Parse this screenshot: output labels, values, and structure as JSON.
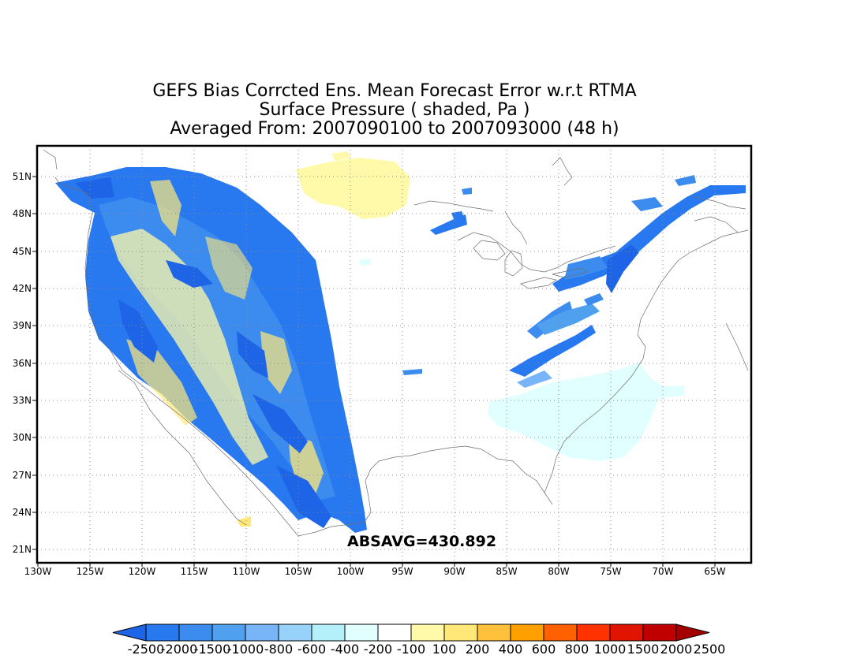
{
  "title": {
    "line1": "GEFS Bias Corrcted Ens. Mean Forecast Error w.r.t RTMA",
    "line2": "Surface Pressure ( shaded, Pa )",
    "line3": "Averaged From: 2007090100 to 2007093000 (48 h)"
  },
  "annotation": "ABSAVG=430.892",
  "lat_labels": [
    "51N",
    "48N",
    "45N",
    "42N",
    "39N",
    "36N",
    "33N",
    "30N",
    "27N",
    "24N",
    "21N"
  ],
  "lon_labels": [
    "130W",
    "125W",
    "120W",
    "115W",
    "110W",
    "105W",
    "100W",
    "95W",
    "90W",
    "85W",
    "80W",
    "75W",
    "70W",
    "65W"
  ],
  "colorbar": {
    "colors": [
      "#1e64e6",
      "#2878f0",
      "#3c8cf0",
      "#50a0f0",
      "#78b4f8",
      "#96d2fa",
      "#b4f0fa",
      "#e1ffff",
      "#ffffff",
      "#fffaaa",
      "#ffe878",
      "#ffc03c",
      "#ffa000",
      "#ff6000",
      "#ff3200",
      "#e11400",
      "#c00000",
      "#a50000"
    ],
    "labels": [
      "-2500",
      "-2000",
      "-1500",
      "-1000",
      "-800",
      "-600",
      "-400",
      "-200",
      "-100",
      "100",
      "200",
      "400",
      "600",
      "800",
      "1000",
      "1500",
      "2000",
      "2500"
    ]
  }
}
